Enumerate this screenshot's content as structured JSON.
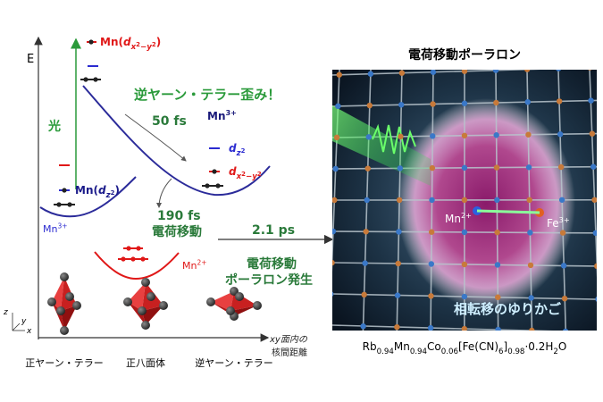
{
  "left_diagram": {
    "energy_axis": "E",
    "light": "光",
    "upper_level": [
      {
        "t": "Mn("
      },
      {
        "i": "d"
      },
      {
        "si": "x"
      },
      {
        "ss": "2"
      },
      {
        "si": "−y"
      },
      {
        "ss": "2"
      },
      {
        "t": ")"
      }
    ],
    "distortion": "逆ヤーン・テラー歪み！",
    "time_1": "50 fs",
    "mn3_right": [
      {
        "t": "Mn"
      },
      {
        "sup": "3+"
      }
    ],
    "dz2_right": [
      {
        "i": "d"
      },
      {
        "si": "z"
      },
      {
        "ss": "2"
      }
    ],
    "dx2y2_right": [
      {
        "i": "d"
      },
      {
        "si": "x"
      },
      {
        "ss": "2"
      },
      {
        "si": "−y"
      },
      {
        "ss": "2"
      }
    ],
    "lower_level": [
      {
        "t": "Mn("
      },
      {
        "i": "d"
      },
      {
        "si": "z"
      },
      {
        "ss": "2"
      },
      {
        "t": ")"
      }
    ],
    "mn3_left": [
      {
        "t": "Mn"
      },
      {
        "sup": "3+"
      }
    ],
    "time_2": "190 fs",
    "charge_transfer_1": "電荷移動",
    "mn2": [
      {
        "t": "Mn"
      },
      {
        "sup": "2+"
      }
    ],
    "time_3": "2.1 ps",
    "charge_transfer_2": "電荷移動",
    "polaron_generation": "ポーラロン発生",
    "x_axis_line1": [
      {
        "i": "xy"
      },
      {
        "t": "面内の"
      }
    ],
    "x_axis_line2": "核間距離",
    "axis_z": "z",
    "axis_y": "y",
    "axis_x": "x",
    "octahedra": [
      "正ヤーン・テラー",
      "正八面体",
      "逆ヤーン・テラー"
    ]
  },
  "right_panel": {
    "title": "電荷移動ポーラロン",
    "mn_label": [
      {
        "t": "Mn"
      },
      {
        "sup": "2+"
      }
    ],
    "fe_label": [
      {
        "t": "Fe"
      },
      {
        "sup": "3+"
      }
    ],
    "caption": "相転移のゆりかご",
    "formula": [
      {
        "t": "Rb"
      },
      {
        "sub": "0.94"
      },
      {
        "t": "Mn"
      },
      {
        "sub": "0.94"
      },
      {
        "t": "Co"
      },
      {
        "sub": "0.06"
      },
      {
        "t": "[Fe(CN)"
      },
      {
        "sub": "6"
      },
      {
        "t": "]"
      },
      {
        "sub": "0.98"
      },
      {
        "t": "·0.2H"
      },
      {
        "sub": "2"
      },
      {
        "t": "O"
      }
    ]
  }
}
